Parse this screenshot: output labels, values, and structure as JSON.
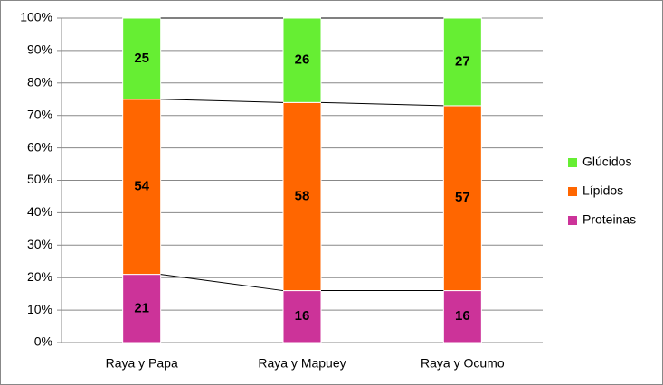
{
  "chart_data": {
    "type": "stacked_bar_100",
    "categories": [
      "Raya y Papa",
      "Raya y Mapuey",
      "Raya y Ocumo"
    ],
    "series": [
      {
        "name": "Proteinas",
        "color": "#cc3399",
        "values": [
          21,
          16,
          16
        ]
      },
      {
        "name": "Lípidos",
        "color": "#ff6600",
        "values": [
          54,
          58,
          57
        ]
      },
      {
        "name": "Glúcidos",
        "color": "#66ee33",
        "values": [
          25,
          26,
          27
        ]
      }
    ],
    "ylim": [
      0,
      100
    ],
    "yticks": [
      {
        "value": 0,
        "label": "0%"
      },
      {
        "value": 10,
        "label": "10%"
      },
      {
        "value": 20,
        "label": "20%"
      },
      {
        "value": 30,
        "label": "30%"
      },
      {
        "value": 40,
        "label": "40%"
      },
      {
        "value": 50,
        "label": "50%"
      },
      {
        "value": 60,
        "label": "60%"
      },
      {
        "value": 70,
        "label": "70%"
      },
      {
        "value": 80,
        "label": "80%"
      },
      {
        "value": 90,
        "label": "90%"
      },
      {
        "value": 100,
        "label": "100%"
      }
    ],
    "grid": true,
    "legend": "right",
    "series_lines": true
  }
}
